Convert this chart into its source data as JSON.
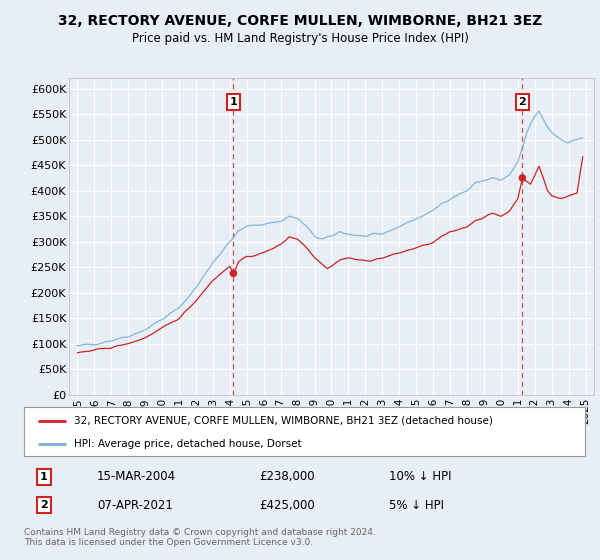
{
  "title": "32, RECTORY AVENUE, CORFE MULLEN, WIMBORNE, BH21 3EZ",
  "subtitle": "Price paid vs. HM Land Registry's House Price Index (HPI)",
  "background_color": "#e8eef5",
  "plot_bg_color": "#e8eef5",
  "grid_color": "#ffffff",
  "hpi_color": "#7bafd4",
  "price_color": "#cc2222",
  "annotation1": {
    "label": "1",
    "date_str": "15-MAR-2004",
    "price_str": "£238,000",
    "pct_str": "10% ↓ HPI",
    "x_year": 2004.21,
    "y_val": 238000
  },
  "annotation2": {
    "label": "2",
    "date_str": "07-APR-2021",
    "price_str": "£425,000",
    "pct_str": "5% ↓ HPI",
    "x_year": 2021.27,
    "y_val": 425000
  },
  "ylim": [
    0,
    620000
  ],
  "yticks": [
    0,
    50000,
    100000,
    150000,
    200000,
    250000,
    300000,
    350000,
    400000,
    450000,
    500000,
    550000,
    600000
  ],
  "ytick_labels": [
    "£0",
    "£50K",
    "£100K",
    "£150K",
    "£200K",
    "£250K",
    "£300K",
    "£350K",
    "£400K",
    "£450K",
    "£500K",
    "£550K",
    "£600K"
  ],
  "xlim_start": 1994.5,
  "xlim_end": 2025.5,
  "xticks": [
    1995,
    1996,
    1997,
    1998,
    1999,
    2000,
    2001,
    2002,
    2003,
    2004,
    2005,
    2006,
    2007,
    2008,
    2009,
    2010,
    2011,
    2012,
    2013,
    2014,
    2015,
    2016,
    2017,
    2018,
    2019,
    2020,
    2021,
    2022,
    2023,
    2024,
    2025
  ],
  "legend_entries": [
    {
      "label": "32, RECTORY AVENUE, CORFE MULLEN, WIMBORNE, BH21 3EZ (detached house)",
      "color": "#cc2222"
    },
    {
      "label": "HPI: Average price, detached house, Dorset",
      "color": "#7bafd4"
    }
  ],
  "footer": "Contains HM Land Registry data © Crown copyright and database right 2024.\nThis data is licensed under the Open Government Licence v3.0."
}
